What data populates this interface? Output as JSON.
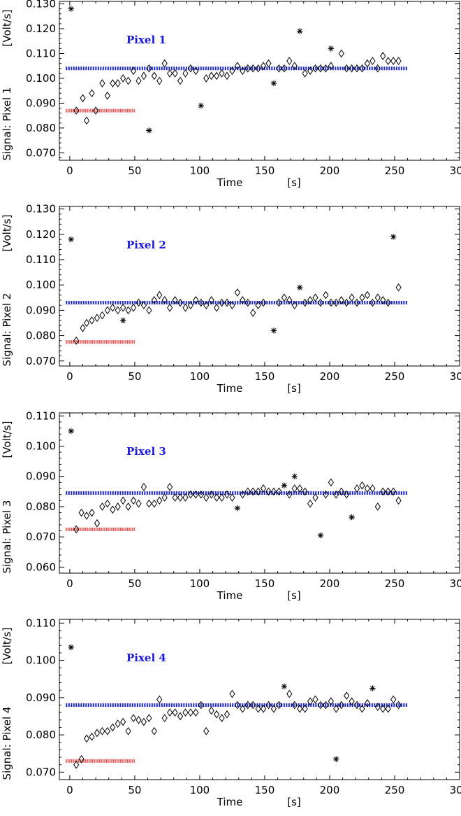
{
  "chart_data": [
    {
      "type": "scatter",
      "ylabel": "Signal:  Pixel 1",
      "yunit": "[Volt/s]",
      "xlabel": "Time",
      "xunit": "[s]",
      "annotation": "Pixel 1",
      "xlim": [
        -8,
        300
      ],
      "ylim": [
        0.067,
        0.131
      ],
      "xticks": [
        "0",
        "50",
        "100",
        "150",
        "200",
        "250",
        "300"
      ],
      "yticks": [
        "0.070",
        "0.080",
        "0.090",
        "0.100",
        "0.110",
        "0.120",
        "0.130"
      ],
      "blue_line": {
        "x0": -3,
        "x1": 260,
        "y": 0.104
      },
      "red_line": {
        "x0": -3,
        "x1": 50,
        "y": 0.087
      },
      "diamonds": [
        [
          5,
          0.087
        ],
        [
          10,
          0.092
        ],
        [
          13,
          0.083
        ],
        [
          17,
          0.094
        ],
        [
          20,
          0.087
        ],
        [
          25,
          0.098
        ],
        [
          29,
          0.093
        ],
        [
          33,
          0.098
        ],
        [
          37,
          0.098
        ],
        [
          41,
          0.1
        ],
        [
          45,
          0.099
        ],
        [
          49,
          0.103
        ],
        [
          53,
          0.099
        ],
        [
          57,
          0.101
        ],
        [
          61,
          0.104
        ],
        [
          65,
          0.101
        ],
        [
          69,
          0.099
        ],
        [
          73,
          0.106
        ],
        [
          77,
          0.102
        ],
        [
          81,
          0.102
        ],
        [
          85,
          0.099
        ],
        [
          89,
          0.102
        ],
        [
          93,
          0.104
        ],
        [
          97,
          0.103
        ],
        [
          105,
          0.1
        ],
        [
          109,
          0.101
        ],
        [
          113,
          0.101
        ],
        [
          117,
          0.102
        ],
        [
          121,
          0.101
        ],
        [
          125,
          0.103
        ],
        [
          129,
          0.105
        ],
        [
          133,
          0.103
        ],
        [
          137,
          0.104
        ],
        [
          141,
          0.104
        ],
        [
          145,
          0.104
        ],
        [
          149,
          0.105
        ],
        [
          153,
          0.106
        ],
        [
          161,
          0.104
        ],
        [
          165,
          0.104
        ],
        [
          169,
          0.107
        ],
        [
          173,
          0.105
        ],
        [
          181,
          0.102
        ],
        [
          185,
          0.103
        ],
        [
          189,
          0.104
        ],
        [
          193,
          0.104
        ],
        [
          197,
          0.104
        ],
        [
          201,
          0.105
        ],
        [
          209,
          0.11
        ],
        [
          213,
          0.104
        ],
        [
          217,
          0.104
        ],
        [
          221,
          0.104
        ],
        [
          225,
          0.104
        ],
        [
          229,
          0.106
        ],
        [
          233,
          0.107
        ],
        [
          237,
          0.104
        ],
        [
          241,
          0.109
        ],
        [
          245,
          0.107
        ],
        [
          249,
          0.107
        ],
        [
          253,
          0.107
        ]
      ],
      "asterisks": [
        [
          1,
          0.128
        ],
        [
          61,
          0.079
        ],
        [
          101,
          0.089
        ],
        [
          157,
          0.098
        ],
        [
          177,
          0.119
        ],
        [
          201,
          0.112
        ]
      ]
    },
    {
      "type": "scatter",
      "ylabel": "Signal:  Pixel 2",
      "yunit": "[Volt/s]",
      "xlabel": "Time",
      "xunit": "[s]",
      "annotation": "Pixel 2",
      "xlim": [
        -8,
        300
      ],
      "ylim": [
        0.068,
        0.131
      ],
      "xticks": [
        "0",
        "50",
        "100",
        "150",
        "200",
        "250",
        "300"
      ],
      "yticks": [
        "0.070",
        "0.080",
        "0.090",
        "0.100",
        "0.110",
        "0.120",
        "0.130"
      ],
      "blue_line": {
        "x0": -3,
        "x1": 260,
        "y": 0.093
      },
      "red_line": {
        "x0": -3,
        "x1": 50,
        "y": 0.0775
      },
      "diamonds": [
        [
          5,
          0.078
        ],
        [
          10,
          0.083
        ],
        [
          13,
          0.085
        ],
        [
          17,
          0.086
        ],
        [
          21,
          0.087
        ],
        [
          25,
          0.088
        ],
        [
          29,
          0.09
        ],
        [
          33,
          0.091
        ],
        [
          37,
          0.09
        ],
        [
          41,
          0.091
        ],
        [
          45,
          0.09
        ],
        [
          49,
          0.091
        ],
        [
          53,
          0.093
        ],
        [
          57,
          0.092
        ],
        [
          61,
          0.09
        ],
        [
          65,
          0.094
        ],
        [
          69,
          0.096
        ],
        [
          73,
          0.094
        ],
        [
          77,
          0.091
        ],
        [
          81,
          0.094
        ],
        [
          85,
          0.093
        ],
        [
          89,
          0.091
        ],
        [
          93,
          0.092
        ],
        [
          97,
          0.094
        ],
        [
          101,
          0.093
        ],
        [
          105,
          0.092
        ],
        [
          109,
          0.094
        ],
        [
          113,
          0.091
        ],
        [
          117,
          0.093
        ],
        [
          121,
          0.093
        ],
        [
          125,
          0.092
        ],
        [
          129,
          0.097
        ],
        [
          133,
          0.094
        ],
        [
          137,
          0.093
        ],
        [
          141,
          0.089
        ],
        [
          145,
          0.092
        ],
        [
          149,
          0.093
        ],
        [
          161,
          0.093
        ],
        [
          165,
          0.095
        ],
        [
          169,
          0.094
        ],
        [
          173,
          0.092
        ],
        [
          181,
          0.093
        ],
        [
          185,
          0.094
        ],
        [
          189,
          0.095
        ],
        [
          193,
          0.093
        ],
        [
          197,
          0.096
        ],
        [
          201,
          0.093
        ],
        [
          205,
          0.093
        ],
        [
          209,
          0.094
        ],
        [
          213,
          0.093
        ],
        [
          217,
          0.095
        ],
        [
          221,
          0.093
        ],
        [
          225,
          0.095
        ],
        [
          229,
          0.096
        ],
        [
          233,
          0.093
        ],
        [
          237,
          0.095
        ],
        [
          241,
          0.094
        ],
        [
          245,
          0.093
        ],
        [
          253,
          0.099
        ]
      ],
      "asterisks": [
        [
          1,
          0.118
        ],
        [
          41,
          0.086
        ],
        [
          157,
          0.082
        ],
        [
          177,
          0.099
        ],
        [
          249,
          0.119
        ]
      ]
    },
    {
      "type": "scatter",
      "ylabel": "Signal:  Pixel 3",
      "yunit": "[Volt/s]",
      "xlabel": "Time",
      "xunit": "[s]",
      "annotation": "Pixel 3",
      "xlim": [
        -8,
        300
      ],
      "ylim": [
        0.058,
        0.111
      ],
      "xticks": [
        "0",
        "50",
        "100",
        "150",
        "200",
        "250",
        "300"
      ],
      "yticks": [
        "0.060",
        "0.070",
        "0.080",
        "0.090",
        "0.100",
        "0.110"
      ],
      "blue_line": {
        "x0": -3,
        "x1": 260,
        "y": 0.0845
      },
      "red_line": {
        "x0": -3,
        "x1": 50,
        "y": 0.0725
      },
      "diamonds": [
        [
          5,
          0.0725
        ],
        [
          9,
          0.078
        ],
        [
          13,
          0.077
        ],
        [
          17,
          0.078
        ],
        [
          21,
          0.0745
        ],
        [
          25,
          0.08
        ],
        [
          29,
          0.081
        ],
        [
          33,
          0.079
        ],
        [
          37,
          0.08
        ],
        [
          41,
          0.082
        ],
        [
          45,
          0.08
        ],
        [
          49,
          0.082
        ],
        [
          53,
          0.081
        ],
        [
          57,
          0.0865
        ],
        [
          61,
          0.081
        ],
        [
          65,
          0.081
        ],
        [
          69,
          0.082
        ],
        [
          73,
          0.083
        ],
        [
          77,
          0.0865
        ],
        [
          81,
          0.083
        ],
        [
          85,
          0.083
        ],
        [
          89,
          0.083
        ],
        [
          93,
          0.084
        ],
        [
          97,
          0.084
        ],
        [
          101,
          0.084
        ],
        [
          105,
          0.083
        ],
        [
          109,
          0.084
        ],
        [
          113,
          0.083
        ],
        [
          117,
          0.083
        ],
        [
          121,
          0.084
        ],
        [
          125,
          0.083
        ],
        [
          133,
          0.084
        ],
        [
          137,
          0.085
        ],
        [
          141,
          0.085
        ],
        [
          145,
          0.085
        ],
        [
          149,
          0.086
        ],
        [
          153,
          0.085
        ],
        [
          157,
          0.085
        ],
        [
          161,
          0.085
        ],
        [
          169,
          0.084
        ],
        [
          173,
          0.086
        ],
        [
          177,
          0.086
        ],
        [
          181,
          0.085
        ],
        [
          185,
          0.081
        ],
        [
          189,
          0.083
        ],
        [
          197,
          0.084
        ],
        [
          201,
          0.088
        ],
        [
          205,
          0.084
        ],
        [
          209,
          0.085
        ],
        [
          213,
          0.084
        ],
        [
          221,
          0.086
        ],
        [
          225,
          0.087
        ],
        [
          229,
          0.086
        ],
        [
          233,
          0.086
        ],
        [
          237,
          0.08
        ],
        [
          241,
          0.085
        ],
        [
          245,
          0.085
        ],
        [
          249,
          0.085
        ],
        [
          253,
          0.082
        ]
      ],
      "asterisks": [
        [
          1,
          0.105
        ],
        [
          129,
          0.0795
        ],
        [
          165,
          0.087
        ],
        [
          173,
          0.09
        ],
        [
          193,
          0.0705
        ],
        [
          217,
          0.0765
        ]
      ]
    },
    {
      "type": "scatter",
      "ylabel": "Signal:  Pixel 4",
      "yunit": "[Volt/s]",
      "xlabel": "Time",
      "xunit": "[s]",
      "annotation": "Pixel 4",
      "xlim": [
        -8,
        300
      ],
      "ylim": [
        0.068,
        0.111
      ],
      "xticks": [
        "0",
        "50",
        "100",
        "150",
        "200",
        "250",
        "300"
      ],
      "yticks": [
        "0.070",
        "0.080",
        "0.090",
        "0.100",
        "0.110"
      ],
      "blue_line": {
        "x0": -3,
        "x1": 260,
        "y": 0.088
      },
      "red_line": {
        "x0": -3,
        "x1": 50,
        "y": 0.073
      },
      "diamonds": [
        [
          5,
          0.072
        ],
        [
          9,
          0.0735
        ],
        [
          13,
          0.079
        ],
        [
          17,
          0.0795
        ],
        [
          21,
          0.0805
        ],
        [
          25,
          0.081
        ],
        [
          29,
          0.081
        ],
        [
          33,
          0.082
        ],
        [
          37,
          0.083
        ],
        [
          41,
          0.0835
        ],
        [
          45,
          0.081
        ],
        [
          49,
          0.0845
        ],
        [
          53,
          0.084
        ],
        [
          57,
          0.0835
        ],
        [
          61,
          0.0845
        ],
        [
          65,
          0.081
        ],
        [
          69,
          0.0895
        ],
        [
          73,
          0.0845
        ],
        [
          77,
          0.086
        ],
        [
          81,
          0.086
        ],
        [
          85,
          0.085
        ],
        [
          89,
          0.086
        ],
        [
          93,
          0.086
        ],
        [
          97,
          0.086
        ],
        [
          101,
          0.088
        ],
        [
          105,
          0.081
        ],
        [
          109,
          0.0865
        ],
        [
          113,
          0.0855
        ],
        [
          117,
          0.0845
        ],
        [
          121,
          0.0855
        ],
        [
          125,
          0.091
        ],
        [
          129,
          0.088
        ],
        [
          133,
          0.087
        ],
        [
          137,
          0.088
        ],
        [
          141,
          0.088
        ],
        [
          145,
          0.087
        ],
        [
          149,
          0.087
        ],
        [
          153,
          0.088
        ],
        [
          157,
          0.087
        ],
        [
          161,
          0.088
        ],
        [
          169,
          0.091
        ],
        [
          173,
          0.088
        ],
        [
          177,
          0.087
        ],
        [
          181,
          0.087
        ],
        [
          185,
          0.089
        ],
        [
          189,
          0.0895
        ],
        [
          193,
          0.088
        ],
        [
          197,
          0.088
        ],
        [
          201,
          0.089
        ],
        [
          205,
          0.087
        ],
        [
          209,
          0.088
        ],
        [
          213,
          0.0905
        ],
        [
          217,
          0.089
        ],
        [
          221,
          0.088
        ],
        [
          225,
          0.087
        ],
        [
          229,
          0.0885
        ],
        [
          237,
          0.0875
        ],
        [
          241,
          0.087
        ],
        [
          245,
          0.087
        ],
        [
          249,
          0.0895
        ],
        [
          253,
          0.088
        ]
      ],
      "asterisks": [
        [
          1,
          0.1035
        ],
        [
          165,
          0.093
        ],
        [
          205,
          0.0735
        ],
        [
          233,
          0.0925
        ]
      ]
    }
  ],
  "colors": {
    "mean_line": "#1e2ad0",
    "early_mean_line": "#ee4a4a",
    "annotation": "#1a1ad6",
    "marker": "#000000"
  }
}
